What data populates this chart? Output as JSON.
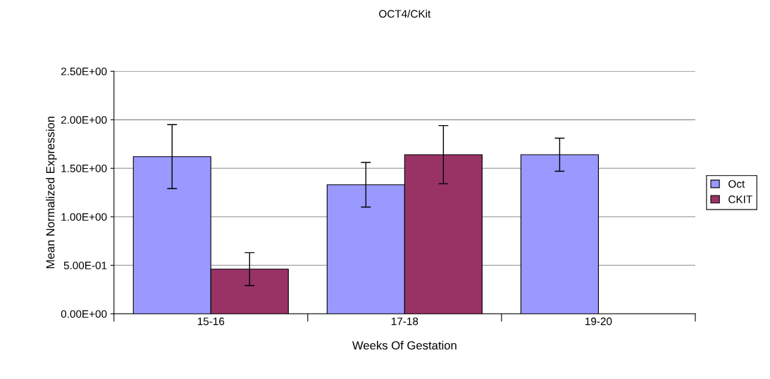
{
  "chart_data": {
    "type": "bar",
    "title": "OCT4/CKit",
    "xlabel": "Weeks Of Gestation",
    "ylabel": "Mean Normalized Expression",
    "categories": [
      "15-16",
      "17-18",
      "19-20"
    ],
    "series": [
      {
        "name": "Oct",
        "color": "#9999ff",
        "values": [
          1.62,
          1.33,
          1.64
        ],
        "errors": [
          0.33,
          0.23,
          0.17
        ]
      },
      {
        "name": "CKIT",
        "color": "#993366",
        "values": [
          0.46,
          1.64,
          null
        ],
        "errors": [
          0.17,
          0.3,
          null
        ]
      }
    ],
    "ylim": [
      0,
      2.5
    ],
    "yticks": [
      {
        "value": 0,
        "label": "0.00E+00"
      },
      {
        "value": 0.5,
        "label": "5.00E-01"
      },
      {
        "value": 1,
        "label": "1.00E+00"
      },
      {
        "value": 1.5,
        "label": "1.50E+00"
      },
      {
        "value": 2,
        "label": "2.00E+00"
      },
      {
        "value": 2.5,
        "label": "2.50E+00"
      }
    ],
    "grid": "y",
    "legend": "right"
  }
}
